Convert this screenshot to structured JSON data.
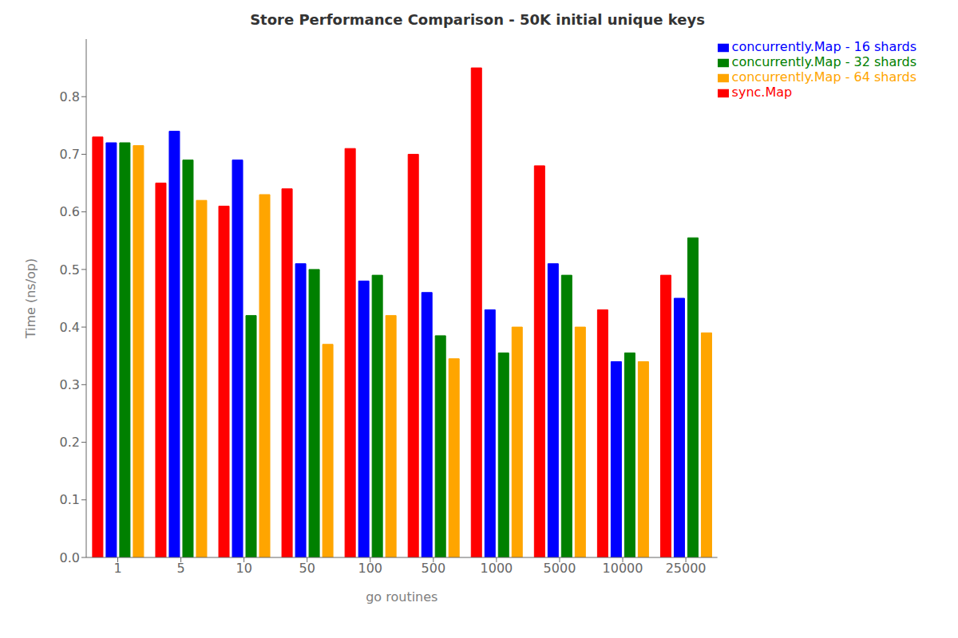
{
  "chart_data": {
    "type": "bar",
    "title": "Store Performance Comparison - 50K initial unique keys",
    "xlabel": "go routines",
    "ylabel": "Time (ns/op)",
    "categories": [
      "1",
      "5",
      "10",
      "50",
      "100",
      "500",
      "1000",
      "5000",
      "10000",
      "25000"
    ],
    "series": [
      {
        "name": "sync.Map",
        "color": "red",
        "values": [
          0.73,
          0.65,
          0.61,
          0.64,
          0.71,
          0.7,
          0.85,
          0.68,
          0.43,
          0.49
        ]
      },
      {
        "name": "concurrently.Map - 16 shards",
        "color": "blue",
        "values": [
          0.72,
          0.74,
          0.69,
          0.51,
          0.48,
          0.46,
          0.43,
          0.51,
          0.34,
          0.45
        ]
      },
      {
        "name": "concurrently.Map - 32 shards",
        "color": "green",
        "values": [
          0.72,
          0.69,
          0.42,
          0.5,
          0.49,
          0.385,
          0.355,
          0.49,
          0.355,
          0.555
        ]
      },
      {
        "name": "concurrently.Map - 64 shards",
        "color": "orange",
        "values": [
          0.715,
          0.62,
          0.63,
          0.37,
          0.42,
          0.345,
          0.4,
          0.4,
          0.34,
          0.39
        ]
      }
    ],
    "ylim": [
      0,
      0.9
    ],
    "yticks": [
      {
        "value": 0,
        "label": "0.0"
      },
      0.1,
      0.2,
      0.3,
      0.4,
      0.5,
      0.6,
      0.7,
      0.8
    ],
    "grid": false,
    "legend": "upper right"
  }
}
